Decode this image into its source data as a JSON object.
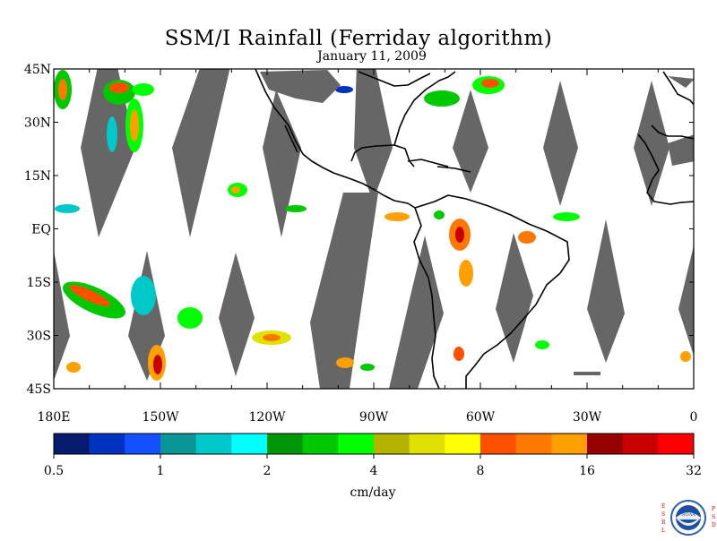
{
  "title": "SSM/I Rainfall (Ferriday algorithm)",
  "date": "January 11, 2009",
  "map": {
    "lat_labels": [
      "45N",
      "30N",
      "15N",
      "EQ",
      "15S",
      "30S",
      "45S"
    ],
    "lon_labels": [
      "180E",
      "150W",
      "120W",
      "90W",
      "60W",
      "30W",
      "0"
    ],
    "swath_color": "#666666",
    "land_outline_color": "#000000"
  },
  "colorbar": {
    "colors": [
      "#061a6e",
      "#0032c0",
      "#1450ff",
      "#0a9696",
      "#00c8c8",
      "#00ffff",
      "#00960a",
      "#00c800",
      "#00ff00",
      "#b4b400",
      "#e1e100",
      "#ffff00",
      "#ff5000",
      "#ff7800",
      "#ffa000",
      "#960000",
      "#c80000",
      "#ff0000"
    ],
    "tick_labels": [
      "0.5",
      "1",
      "2",
      "4",
      "8",
      "16",
      "32"
    ],
    "unit_label": "cm/day"
  },
  "logo": {
    "left_letters": "E S R L",
    "right_letters": "P S D",
    "seal_text": "NOAA"
  }
}
